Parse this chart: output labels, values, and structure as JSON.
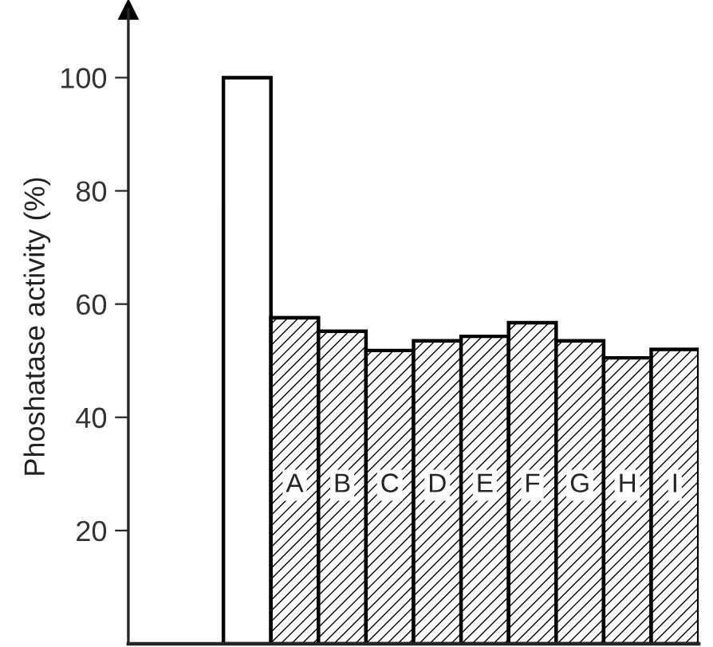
{
  "chart_data": {
    "type": "bar",
    "ylabel": "Phoshatase activity (%)",
    "categories": [
      null,
      "A",
      "B",
      "C",
      "D",
      "E",
      "F",
      "G",
      "H",
      "I"
    ],
    "values": [
      100,
      57.6,
      55.2,
      51.8,
      53.5,
      54.3,
      56.7,
      53.5,
      50.5,
      52.0
    ],
    "colors": [
      "#ffffff",
      "#ffffff",
      "#ffffff",
      "#ffffff",
      "#ffffff",
      "#ffffff",
      "#ffffff",
      "#ffffff",
      "#ffffff",
      "#ffffff"
    ],
    "ylim": [
      0,
      112
    ],
    "yticks": [
      20,
      40,
      60,
      80,
      100
    ],
    "grid": false,
    "legend": false
  }
}
